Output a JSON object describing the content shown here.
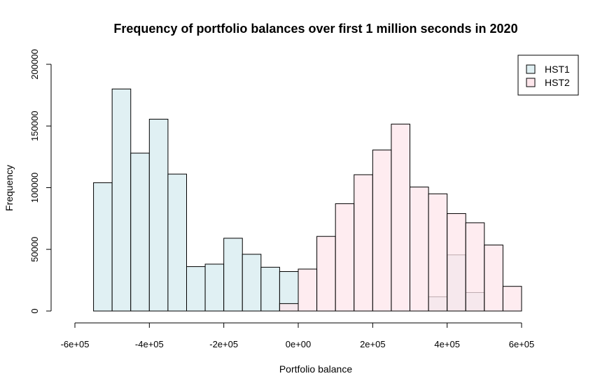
{
  "chart_data": {
    "type": "bar",
    "subtype": "overlapping-histogram",
    "title": "Frequency of portfolio balances over first 1 million seconds in 2020",
    "xlabel": "Portfolio balance",
    "ylabel": "Frequency",
    "xlim": [
      -600000,
      600000
    ],
    "ylim": [
      0,
      200000
    ],
    "x_ticks": [
      -600000,
      -400000,
      -200000,
      0,
      200000,
      400000,
      600000
    ],
    "x_tick_labels": [
      "-6e+05",
      "-4e+05",
      "-2e+05",
      "0e+00",
      "2e+05",
      "4e+05",
      "6e+05"
    ],
    "y_ticks": [
      0,
      50000,
      100000,
      150000,
      200000
    ],
    "y_tick_labels": [
      "0",
      "50000",
      "100000",
      "150000",
      "200000"
    ],
    "grid": false,
    "legend": {
      "position": "top-right",
      "entries": [
        "HST1",
        "HST2"
      ]
    },
    "series": [
      {
        "name": "HST1",
        "color": "#e0f0f3",
        "bins": [
          {
            "x0": -550000,
            "x1": -500000,
            "y": 104000
          },
          {
            "x0": -500000,
            "x1": -450000,
            "y": 180000
          },
          {
            "x0": -450000,
            "x1": -400000,
            "y": 128000
          },
          {
            "x0": -400000,
            "x1": -350000,
            "y": 155500
          },
          {
            "x0": -350000,
            "x1": -300000,
            "y": 111000
          },
          {
            "x0": -300000,
            "x1": -250000,
            "y": 36000
          },
          {
            "x0": -250000,
            "x1": -200000,
            "y": 38000
          },
          {
            "x0": -200000,
            "x1": -150000,
            "y": 59000
          },
          {
            "x0": -150000,
            "x1": -100000,
            "y": 46000
          },
          {
            "x0": -100000,
            "x1": -50000,
            "y": 35500
          },
          {
            "x0": -50000,
            "x1": 0,
            "y": 32000
          },
          {
            "x0": 350000,
            "x1": 400000,
            "y": 11500
          },
          {
            "x0": 400000,
            "x1": 450000,
            "y": 45500
          },
          {
            "x0": 450000,
            "x1": 500000,
            "y": 15000
          }
        ]
      },
      {
        "name": "HST2",
        "color": "#fde6eb",
        "bins": [
          {
            "x0": -50000,
            "x1": 0,
            "y": 6000
          },
          {
            "x0": 0,
            "x1": 50000,
            "y": 34000
          },
          {
            "x0": 50000,
            "x1": 100000,
            "y": 60500
          },
          {
            "x0": 100000,
            "x1": 150000,
            "y": 87000
          },
          {
            "x0": 150000,
            "x1": 200000,
            "y": 110500
          },
          {
            "x0": 200000,
            "x1": 250000,
            "y": 130500
          },
          {
            "x0": 250000,
            "x1": 300000,
            "y": 151500
          },
          {
            "x0": 300000,
            "x1": 350000,
            "y": 100500
          },
          {
            "x0": 350000,
            "x1": 400000,
            "y": 95000
          },
          {
            "x0": 400000,
            "x1": 450000,
            "y": 79000
          },
          {
            "x0": 450000,
            "x1": 500000,
            "y": 71500
          },
          {
            "x0": 500000,
            "x1": 550000,
            "y": 53500
          },
          {
            "x0": 550000,
            "x1": 600000,
            "y": 20000
          }
        ]
      }
    ]
  }
}
